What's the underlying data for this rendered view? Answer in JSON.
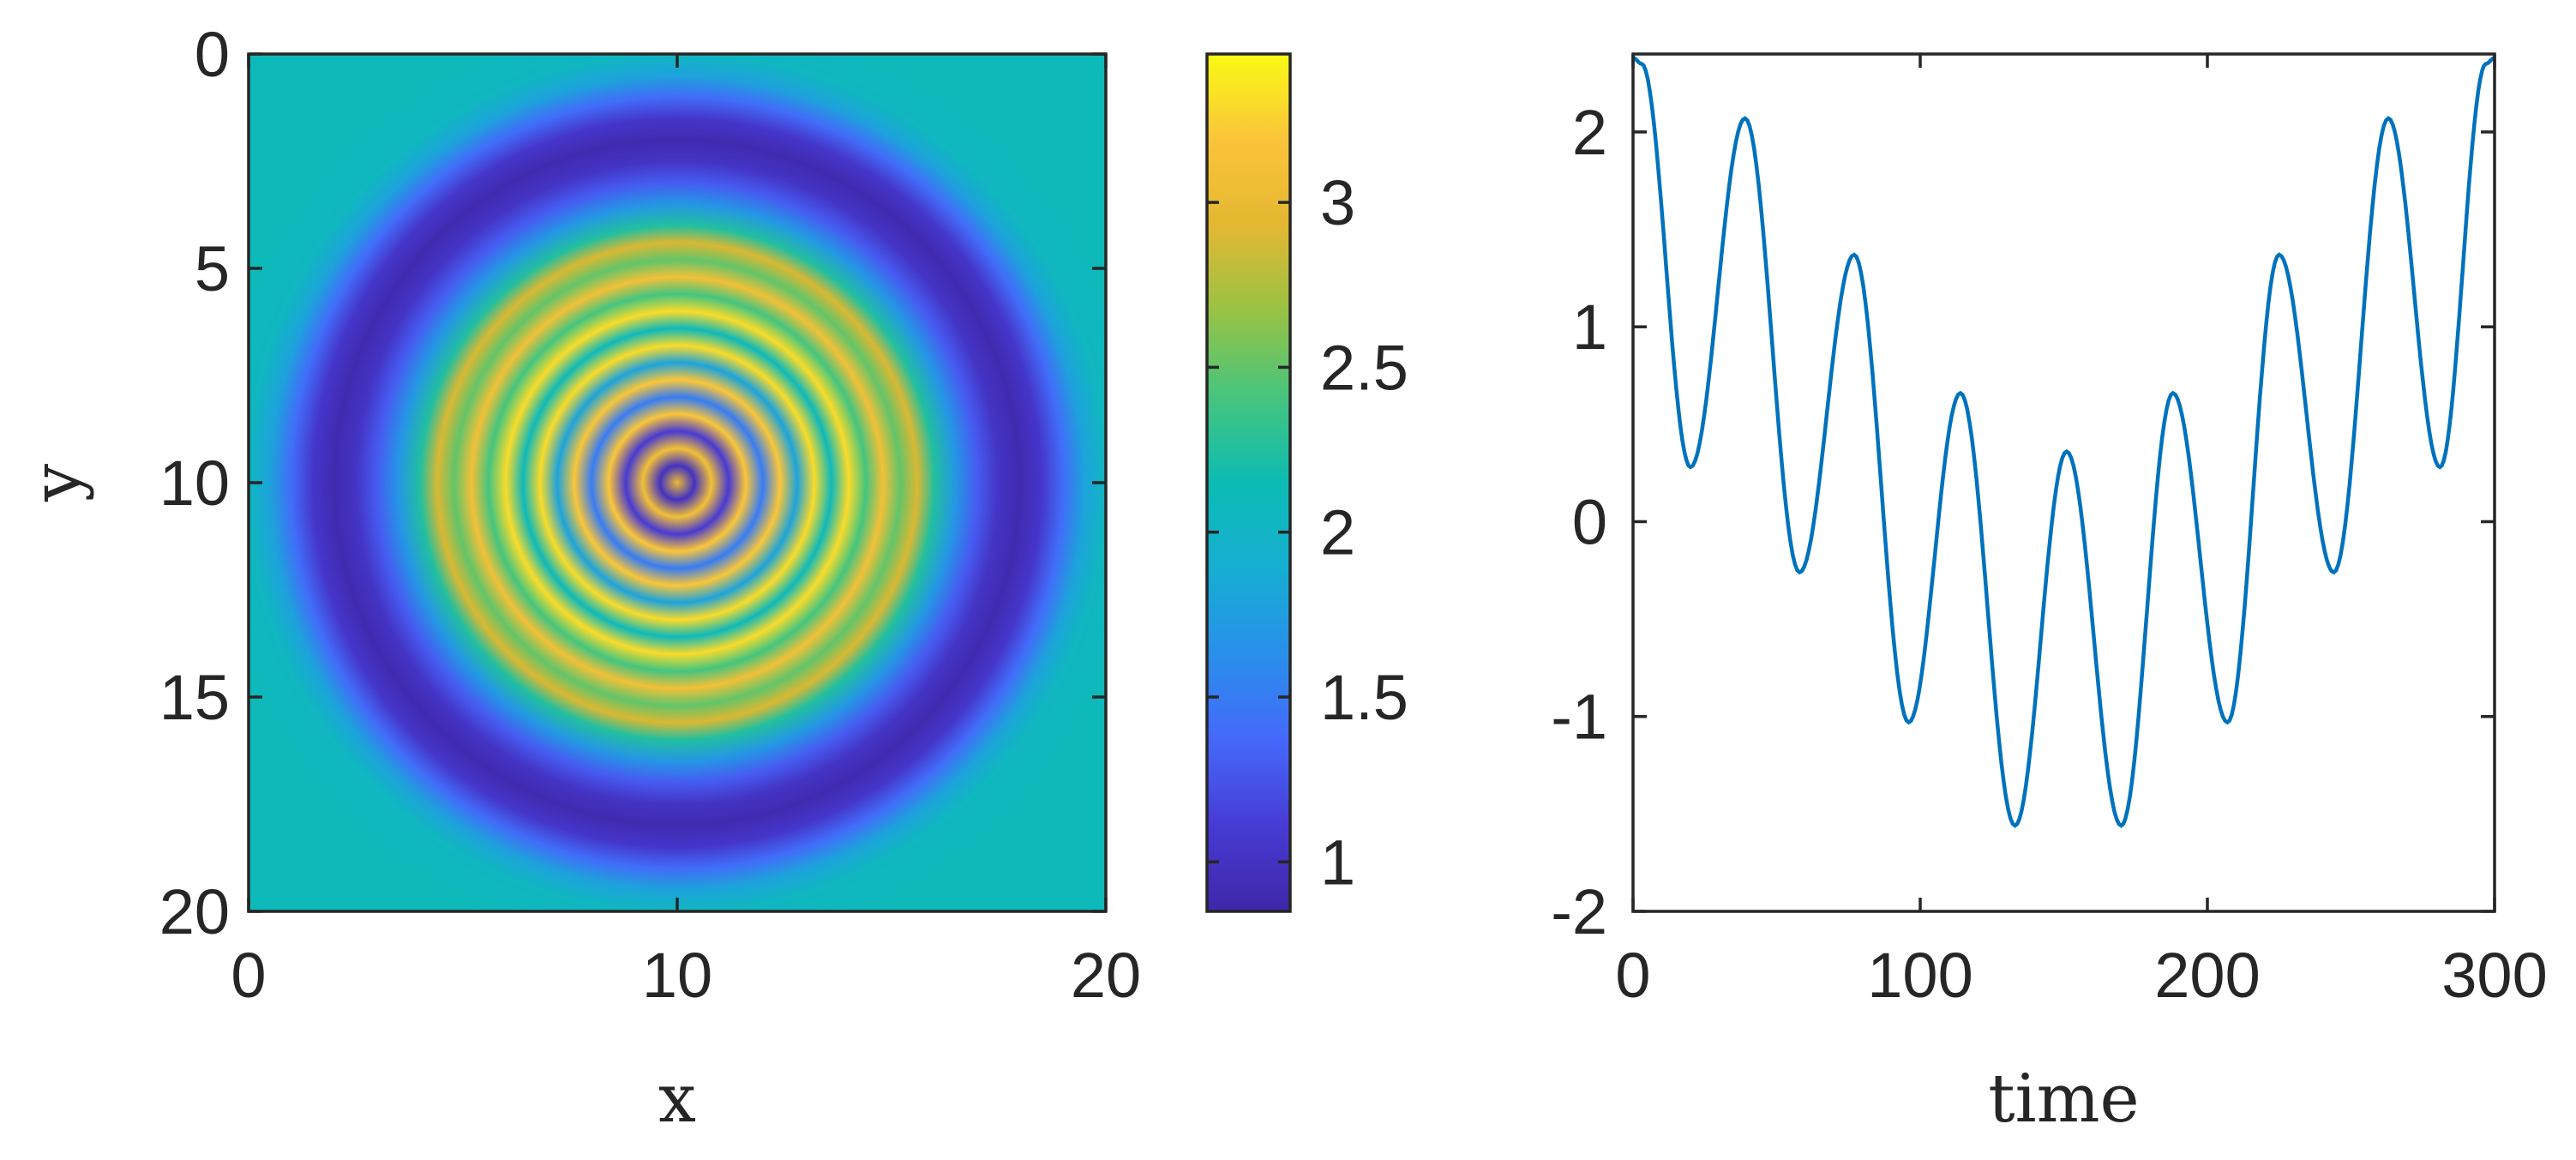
{
  "chart_data": [
    {
      "type": "heatmap",
      "title": "",
      "xlabel": "x",
      "ylabel": "y",
      "xlim": [
        0,
        20
      ],
      "ylim": [
        0,
        20
      ],
      "y_direction": "reversed",
      "center": [
        10,
        10
      ],
      "x_ticks": [
        {
          "value": 0,
          "label": "0"
        },
        {
          "value": 10,
          "label": "10"
        },
        {
          "value": 20,
          "label": "20"
        }
      ],
      "y_ticks": [
        {
          "value": 0,
          "label": "0"
        },
        {
          "value": 5,
          "label": "5"
        },
        {
          "value": 10,
          "label": "10"
        },
        {
          "value": 15,
          "label": "15"
        },
        {
          "value": 20,
          "label": "20"
        }
      ],
      "colorbar": {
        "range": [
          0.85,
          3.45
        ],
        "colormap": "parula",
        "ticks": [
          {
            "value": 1,
            "label": "1"
          },
          {
            "value": 1.5,
            "label": "1.5"
          },
          {
            "value": 2,
            "label": "2"
          },
          {
            "value": 2.5,
            "label": "2.5"
          },
          {
            "value": 3,
            "label": "3"
          }
        ]
      },
      "radial_profile": {
        "r": [
          0,
          0.4,
          0.8,
          1.2,
          1.6,
          2.0,
          2.4,
          2.8,
          3.2,
          3.6,
          4.0,
          4.4,
          4.8,
          5.2,
          5.6,
          6.0,
          6.5,
          7.0,
          7.5,
          8.0,
          8.5,
          9.0,
          9.5,
          10.0,
          11.0,
          14.2
        ],
        "values": [
          3.0,
          1.0,
          3.1,
          1.1,
          3.2,
          1.5,
          3.2,
          1.8,
          3.3,
          2.1,
          3.3,
          2.4,
          3.1,
          2.5,
          2.9,
          2.25,
          1.7,
          1.3,
          1.02,
          0.9,
          1.05,
          1.4,
          1.8,
          2.05,
          2.1,
          2.1
        ]
      }
    },
    {
      "type": "line",
      "title": "",
      "xlabel": "time",
      "ylabel": "",
      "xlim": [
        0,
        300
      ],
      "ylim": [
        -2,
        2.4
      ],
      "x_ticks": [
        {
          "value": 0,
          "label": "0"
        },
        {
          "value": 100,
          "label": "100"
        },
        {
          "value": 200,
          "label": "200"
        },
        {
          "value": 300,
          "label": "300"
        }
      ],
      "y_ticks": [
        {
          "value": -2,
          "label": "-2"
        },
        {
          "value": -1,
          "label": "-1"
        },
        {
          "value": 0,
          "label": "0"
        },
        {
          "value": 1,
          "label": "1"
        },
        {
          "value": 2,
          "label": "2"
        }
      ],
      "series": [
        {
          "color": "#0072BD",
          "x": [
            0,
            3,
            20,
            39,
            58,
            77,
            96,
            114,
            133,
            151,
            170,
            188,
            207,
            225,
            244,
            263,
            281,
            297,
            300
          ],
          "y": [
            2.38,
            2.35,
            0.28,
            2.07,
            -0.26,
            1.37,
            -1.03,
            0.66,
            -1.56,
            0.36,
            -1.56,
            0.66,
            -1.03,
            1.37,
            -0.26,
            2.07,
            0.28,
            2.35,
            2.38
          ]
        }
      ]
    }
  ]
}
